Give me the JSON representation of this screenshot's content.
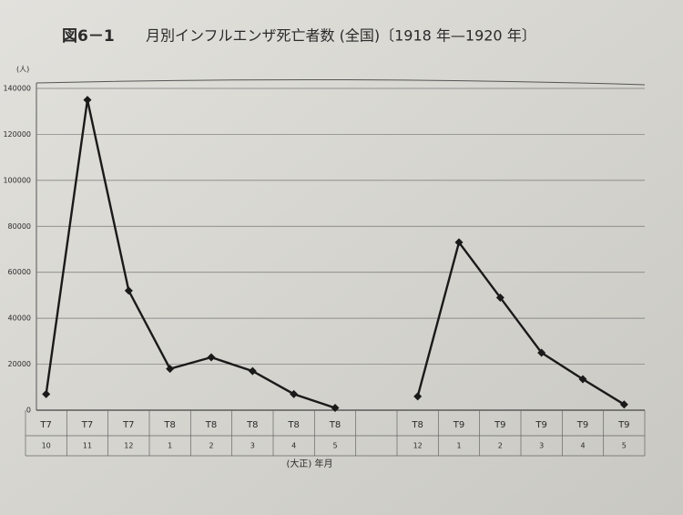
{
  "chart_data": {
    "type": "line",
    "figure_label": "図6－1",
    "title": "月別インフルエンザ死亡者数 (全国)〔1918 年—1920 年〕",
    "y_unit": "(人)",
    "x_label": "(大正) 年月",
    "categories": [
      "T7",
      "T7",
      "T7",
      "T8",
      "T8",
      "T8",
      "T8",
      "T8",
      null,
      "T8",
      "T9",
      "T9",
      "T9",
      "T9",
      "T9"
    ],
    "category_months": [
      "10",
      "11",
      "12",
      "1",
      "2",
      "3",
      "4",
      "5",
      null,
      "12",
      "1",
      "2",
      "3",
      "4",
      "5"
    ],
    "series": [
      {
        "name": "死亡者数",
        "color": "#1a1a1a",
        "values": [
          7000,
          135000,
          52000,
          18000,
          23000,
          17000,
          7000,
          1000,
          null,
          6000,
          73000,
          49000,
          25000,
          13500,
          2500
        ]
      }
    ],
    "ylim": [
      0,
      140000
    ],
    "yticks": [
      0,
      20000,
      40000,
      60000,
      80000,
      100000,
      120000,
      140000
    ],
    "grid": true
  }
}
